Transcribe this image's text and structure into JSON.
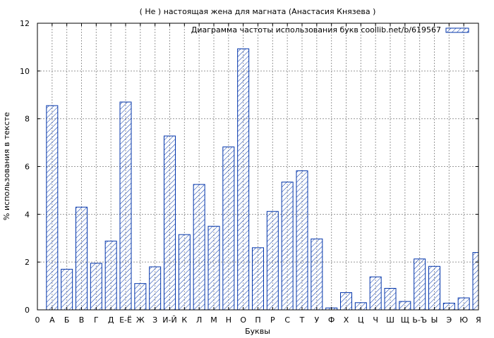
{
  "chart_data": {
    "type": "bar",
    "title": "( Не ) настоящая жена для магната (Анастасия Князева )",
    "xlabel": "Буквы",
    "ylabel": "% использования в тексте",
    "ylim": [
      0,
      12
    ],
    "yticks": [
      "0",
      "2",
      "4",
      "6",
      "8",
      "10",
      "12"
    ],
    "grid": true,
    "legend_position": "top-right",
    "categories": [
      "0",
      "А",
      "Б",
      "В",
      "Г",
      "Д",
      "Е-Ё",
      "Ж",
      "З",
      "И-Й",
      "К",
      "Л",
      "М",
      "Н",
      "О",
      "П",
      "Р",
      "С",
      "Т",
      "У",
      "Ф",
      "Х",
      "Ц",
      "Ч",
      "Ш",
      "Щ",
      "Ь-Ъ",
      "Ы",
      "Э",
      "Ю",
      "Я"
    ],
    "series": [
      {
        "name": "Диаграмма частоты использования букв coollib.net/b/619567",
        "values": [
          0,
          8.55,
          1.7,
          4.3,
          1.95,
          2.88,
          8.7,
          1.1,
          1.8,
          7.28,
          3.15,
          5.25,
          3.5,
          6.82,
          10.93,
          2.6,
          4.12,
          5.35,
          5.82,
          2.97,
          0.08,
          0.72,
          0.3,
          1.38,
          0.9,
          0.35,
          2.13,
          1.82,
          0.28,
          0.5,
          2.4
        ]
      }
    ],
    "colors": {
      "bar_stroke": "#0033aa",
      "hatch": "#0033aa",
      "grid": "#999999"
    }
  }
}
